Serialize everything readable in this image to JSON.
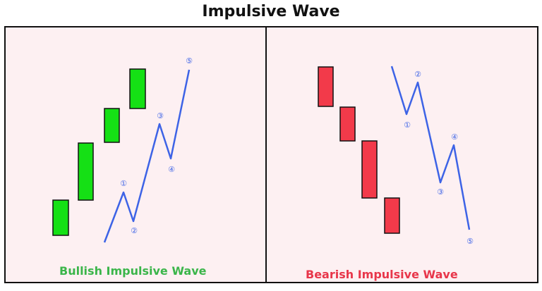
{
  "title": "Impulsive Wave",
  "colors": {
    "bull": "#15e015",
    "bear": "#f23a4a",
    "wave": "#3d63e6",
    "panel_bg": "#fdf0f2",
    "bull_caption": "#3bb54a",
    "bear_caption": "#e8364a"
  },
  "bullish": {
    "caption": "Bullish Impulsive Wave",
    "wave_labels": [
      "①",
      "②",
      "③",
      "④",
      "⑤"
    ]
  },
  "bearish": {
    "caption": "Bearish Impulsive Wave",
    "wave_labels": [
      "①",
      "②",
      "③",
      "④",
      "⑤"
    ]
  }
}
